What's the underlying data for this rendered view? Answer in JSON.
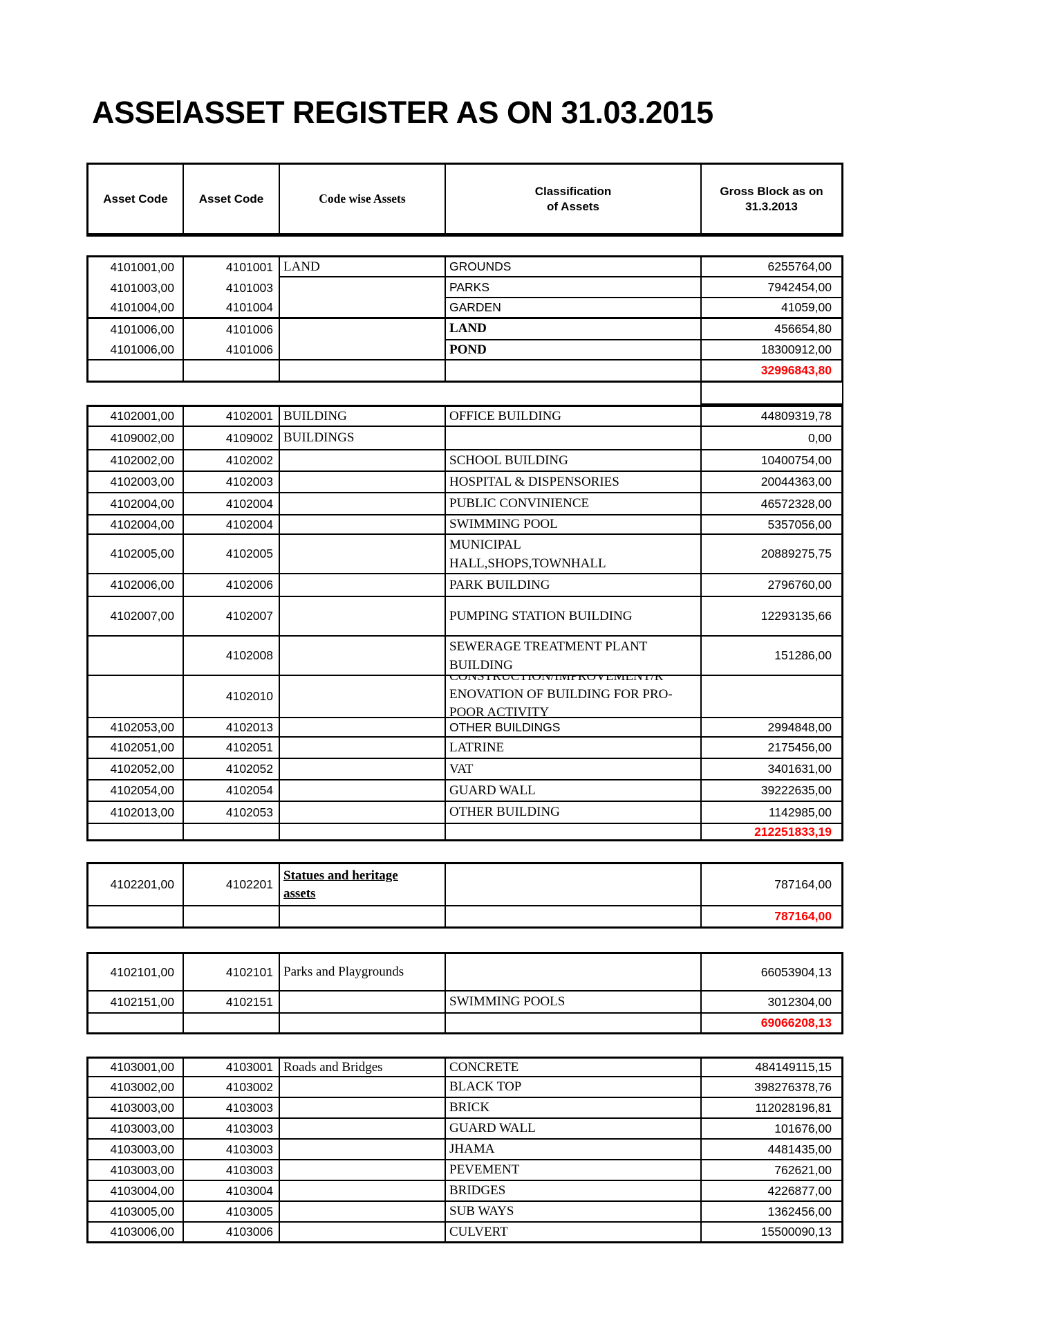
{
  "title": {
    "prefix": "ASSE",
    "main": "ASSET REGISTER AS ON 31.03.2015"
  },
  "header": {
    "asset_code_1": "Asset Code",
    "asset_code_2": "Asset Code",
    "code_wise": "Code wise Assets",
    "classification_line1": "Classification",
    "classification_line2": "of Assets",
    "gross_line1": "Gross Block as on",
    "gross_line2": "31.3.2013"
  },
  "colors": {
    "total_red": "#fe0000",
    "border": "#000000"
  },
  "blocks": [
    {
      "id": "land",
      "rows": [
        {
          "c1": "4101001,00",
          "c2": "4101001",
          "c3": "LAND",
          "c4": "GROUNDS",
          "c5": "6255764,00"
        },
        {
          "c1": "4101003,00",
          "c2": "4101003",
          "c3": "",
          "c4": "PARKS",
          "c5": "7942454,00"
        },
        {
          "c1": "4101004,00",
          "c2": "4101004",
          "c3": "",
          "c4": "GARDEN",
          "c5": "41059,00"
        },
        {
          "c1": "4101006,00",
          "c2": "4101006",
          "c3": "",
          "c4": "LAND",
          "c5": "456654,80"
        },
        {
          "c1": "4101006,00",
          "c2": "4101006",
          "c3": "",
          "c4": "POND",
          "c5": "18300912,00"
        },
        {
          "c1": "",
          "c2": "",
          "c3": "",
          "c4": "",
          "c5": "32996843,80",
          "total": true
        }
      ]
    },
    {
      "id": "building",
      "rows": [
        {
          "c1": "4102001,00",
          "c2": "4102001",
          "c3": "BUILDING",
          "c4": "OFFICE BUILDING",
          "c5": "44809319,78"
        },
        {
          "c1": "4109002,00",
          "c2": "4109002",
          "c3": "BUILDINGS",
          "c4": "",
          "c5": "0,00"
        },
        {
          "c1": "4102002,00",
          "c2": "4102002",
          "c3": "",
          "c4": "SCHOOL BUILDING",
          "c5": "10400754,00"
        },
        {
          "c1": "4102003,00",
          "c2": "4102003",
          "c3": "",
          "c4": "HOSPITAL & DISPENSORIES",
          "c5": "20044363,00"
        },
        {
          "c1": "4102004,00",
          "c2": "4102004",
          "c3": "",
          "c4": "PUBLIC CONVINIENCE",
          "c5": "46572328,00"
        },
        {
          "c1": "4102004,00",
          "c2": "4102004",
          "c3": "",
          "c4": "SWIMMING POOL",
          "c5": "5357056,00"
        },
        {
          "c1": "4102005,00",
          "c2": "4102005",
          "c3": "",
          "c4_lines": [
            "MUNICIPAL",
            "HALL,SHOPS,TOWNHALL"
          ],
          "c5": "20889275,75"
        },
        {
          "c1": "4102006,00",
          "c2": "4102006",
          "c3": "",
          "c4": "PARK BUILDING",
          "c5": "2796760,00"
        },
        {
          "c1": "4102007,00",
          "c2": "4102007",
          "c3": "",
          "c4": "PUMPING STATION BUILDING",
          "c5": "12293135,66"
        },
        {
          "c1": "",
          "c2": "4102008",
          "c3": "",
          "c4_lines": [
            "SEWERAGE TREATMENT PLANT",
            "BUILDING"
          ],
          "c5": "151286,00"
        },
        {
          "c1": "",
          "c2": "4102010",
          "c3": "",
          "c4_lines": [
            "CONSTRUCTION/IMPROVEMENT/R",
            "ENOVATION OF BUILDING FOR PRO-",
            "POOR ACTIVITY"
          ],
          "c5": ""
        },
        {
          "c1": "4102053,00",
          "c2": "4102013",
          "c3": "",
          "c4": "OTHER BUILDINGS",
          "c5": "2994848,00"
        },
        {
          "c1": "4102051,00",
          "c2": "4102051",
          "c3": "",
          "c4": "LATRINE",
          "c5": "2175456,00"
        },
        {
          "c1": "4102052,00",
          "c2": "4102052",
          "c3": "",
          "c4": "VAT",
          "c5": "3401631,00"
        },
        {
          "c1": "4102054,00",
          "c2": "4102054",
          "c3": "",
          "c4": "GUARD WALL",
          "c5": "39222635,00"
        },
        {
          "c1": "4102013,00",
          "c2": "4102053",
          "c3": "",
          "c4": "OTHER BUILDING",
          "c5": "1142985,00"
        },
        {
          "c1": "",
          "c2": "",
          "c3": "",
          "c4": "",
          "c5": "212251833,19",
          "total": true
        }
      ]
    },
    {
      "id": "statues",
      "rows": [
        {
          "c1": "4102201,00",
          "c2": "4102201",
          "c3_lines": [
            "Statues and heritage",
            "assets"
          ],
          "c4": "",
          "c5": "787164,00"
        },
        {
          "c1": "",
          "c2": "",
          "c3": "",
          "c4": "",
          "c5": "787164,00",
          "total": true
        }
      ]
    },
    {
      "id": "parks-playgrounds",
      "rows": [
        {
          "c1": "4102101,00",
          "c2": "4102101",
          "c3": "Parks and Playgrounds",
          "c4": "",
          "c5": "66053904,13"
        },
        {
          "c1": "4102151,00",
          "c2": "4102151",
          "c3": "",
          "c4": "SWIMMING POOLS",
          "c5": "3012304,00"
        },
        {
          "c1": "",
          "c2": "",
          "c3": "",
          "c4": "",
          "c5": "69066208,13",
          "total": true
        }
      ]
    },
    {
      "id": "roads-bridges",
      "rows": [
        {
          "c1": "4103001,00",
          "c2": "4103001",
          "c3": "Roads and Bridges",
          "c4": "CONCRETE",
          "c5": "484149115,15"
        },
        {
          "c1": "4103002,00",
          "c2": "4103002",
          "c3": "",
          "c4": "BLACK TOP",
          "c5": "398276378,76"
        },
        {
          "c1": "4103003,00",
          "c2": "4103003",
          "c3": "",
          "c4": "BRICK",
          "c5": "112028196,81"
        },
        {
          "c1": "4103003,00",
          "c2": "4103003",
          "c3": "",
          "c4": "GUARD WALL",
          "c5": "101676,00"
        },
        {
          "c1": "4103003,00",
          "c2": "4103003",
          "c3": "",
          "c4": "JHAMA",
          "c5": "4481435,00"
        },
        {
          "c1": "4103003,00",
          "c2": "4103003",
          "c3": "",
          "c4": "PEVEMENT",
          "c5": "762621,00"
        },
        {
          "c1": "4103004,00",
          "c2": "4103004",
          "c3": "",
          "c4": "BRIDGES",
          "c5": "4226877,00"
        },
        {
          "c1": "4103005,00",
          "c2": "4103005",
          "c3": "",
          "c4": "SUB WAYS",
          "c5": "1362456,00"
        },
        {
          "c1": "4103006,00",
          "c2": "4103006",
          "c3": "",
          "c4": "CULVERT",
          "c5": "15500090,13"
        }
      ]
    }
  ]
}
